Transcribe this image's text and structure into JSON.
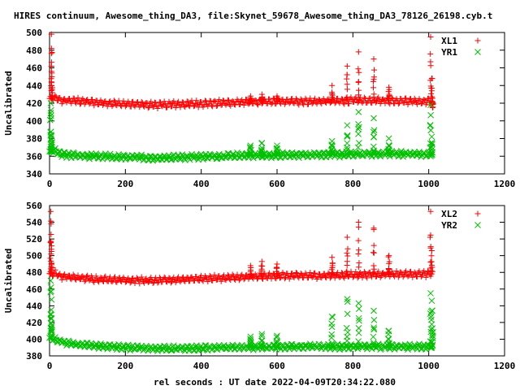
{
  "figure": {
    "title": "HIRES continuum, Awesome_thing_DA3, file:Skynet_59678_Awesome_thing_DA3_78126_26198.cyb.t",
    "xlabel": "rel seconds : UT date 2022-04-09T20:34:22.080"
  },
  "colors": {
    "red": "#ff0000",
    "green": "#00c000"
  },
  "chart_data": [
    {
      "type": "scatter",
      "ylabel": "Uncalibrated",
      "xlim": [
        0,
        1200
      ],
      "ylim": [
        340,
        500
      ],
      "xticks": [
        0,
        200,
        400,
        600,
        800,
        1000,
        1200
      ],
      "yticks": [
        340,
        360,
        380,
        400,
        420,
        440,
        460,
        480,
        500
      ],
      "legend_position": "top-right",
      "series": [
        {
          "name": "XL1",
          "marker": "plus",
          "color": "#ff0000",
          "baseline": [
            [
              0,
              425
            ],
            [
              15,
              426
            ],
            [
              30,
              423
            ],
            [
              60,
              423
            ],
            [
              120,
              421
            ],
            [
              200,
              419
            ],
            [
              280,
              418
            ],
            [
              360,
              419
            ],
            [
              440,
              420
            ],
            [
              500,
              421
            ],
            [
              600,
              422
            ],
            [
              700,
              422
            ],
            [
              800,
              423
            ],
            [
              900,
              423
            ],
            [
              1010,
              422
            ]
          ],
          "wave_amplitude": 3,
          "wave_period": 12,
          "spikes": [
            [
              5,
              498
            ],
            [
              5,
              482
            ],
            [
              6,
              450
            ],
            [
              530,
              428
            ],
            [
              560,
              430
            ],
            [
              600,
              428
            ],
            [
              745,
              440
            ],
            [
              785,
              462
            ],
            [
              815,
              478
            ],
            [
              855,
              470
            ],
            [
              895,
              438
            ],
            [
              1005,
              495
            ],
            [
              1008,
              448
            ],
            [
              1010,
              415
            ]
          ]
        },
        {
          "name": "YR1",
          "marker": "cross",
          "color": "#00c000",
          "baseline": [
            [
              0,
              365
            ],
            [
              15,
              366
            ],
            [
              30,
              362
            ],
            [
              60,
              361
            ],
            [
              120,
              360
            ],
            [
              200,
              359
            ],
            [
              280,
              358
            ],
            [
              360,
              359
            ],
            [
              440,
              360
            ],
            [
              500,
              361
            ],
            [
              600,
              361
            ],
            [
              700,
              362
            ],
            [
              800,
              362
            ],
            [
              900,
              363
            ],
            [
              1010,
              362
            ]
          ],
          "wave_amplitude": 2.5,
          "wave_period": 12,
          "spikes": [
            [
              3,
              420
            ],
            [
              4,
              412
            ],
            [
              5,
              383
            ],
            [
              530,
              372
            ],
            [
              560,
              375
            ],
            [
              600,
              372
            ],
            [
              745,
              377
            ],
            [
              785,
              395
            ],
            [
              815,
              410
            ],
            [
              855,
              403
            ],
            [
              895,
              380
            ],
            [
              1005,
              418
            ],
            [
              1008,
              382
            ]
          ]
        }
      ]
    },
    {
      "type": "scatter",
      "ylabel": "Uncalibrated",
      "xlim": [
        0,
        1200
      ],
      "ylim": [
        380,
        560
      ],
      "xticks": [
        0,
        200,
        400,
        600,
        800,
        1000,
        1200
      ],
      "yticks": [
        380,
        400,
        420,
        440,
        460,
        480,
        500,
        520,
        540,
        560
      ],
      "legend_position": "top-right",
      "series": [
        {
          "name": "XL2",
          "marker": "plus",
          "color": "#ff0000",
          "baseline": [
            [
              0,
              478
            ],
            [
              15,
              479
            ],
            [
              30,
              475
            ],
            [
              60,
              474
            ],
            [
              120,
              472
            ],
            [
              200,
              471
            ],
            [
              280,
              470
            ],
            [
              360,
              472
            ],
            [
              440,
              473
            ],
            [
              500,
              474
            ],
            [
              600,
              476
            ],
            [
              700,
              476
            ],
            [
              800,
              477
            ],
            [
              900,
              478
            ],
            [
              1010,
              478
            ]
          ],
          "wave_amplitude": 3,
          "wave_period": 12,
          "spikes": [
            [
              3,
              553
            ],
            [
              4,
              538
            ],
            [
              5,
              505
            ],
            [
              530,
              488
            ],
            [
              560,
              493
            ],
            [
              600,
              490
            ],
            [
              745,
              498
            ],
            [
              785,
              522
            ],
            [
              815,
              540
            ],
            [
              855,
              533
            ],
            [
              895,
              500
            ],
            [
              1005,
              553
            ],
            [
              1008,
              506
            ]
          ]
        },
        {
          "name": "YR2",
          "marker": "cross",
          "color": "#00c000",
          "baseline": [
            [
              0,
              402
            ],
            [
              15,
              400
            ],
            [
              30,
              397
            ],
            [
              60,
              394
            ],
            [
              120,
              392
            ],
            [
              200,
              390
            ],
            [
              280,
              389
            ],
            [
              360,
              389
            ],
            [
              440,
              390
            ],
            [
              500,
              390
            ],
            [
              600,
              391
            ],
            [
              700,
              391
            ],
            [
              800,
              391
            ],
            [
              900,
              391
            ],
            [
              1010,
              391
            ]
          ],
          "wave_amplitude": 2.5,
          "wave_period": 12,
          "spikes": [
            [
              3,
              470
            ],
            [
              4,
              462
            ],
            [
              5,
              425
            ],
            [
              530,
              403
            ],
            [
              560,
              406
            ],
            [
              600,
              404
            ],
            [
              745,
              427
            ],
            [
              785,
              448
            ],
            [
              815,
              443
            ],
            [
              855,
              434
            ],
            [
              895,
              410
            ],
            [
              1005,
              455
            ],
            [
              1008,
              446
            ],
            [
              1010,
              413
            ]
          ]
        }
      ]
    }
  ]
}
